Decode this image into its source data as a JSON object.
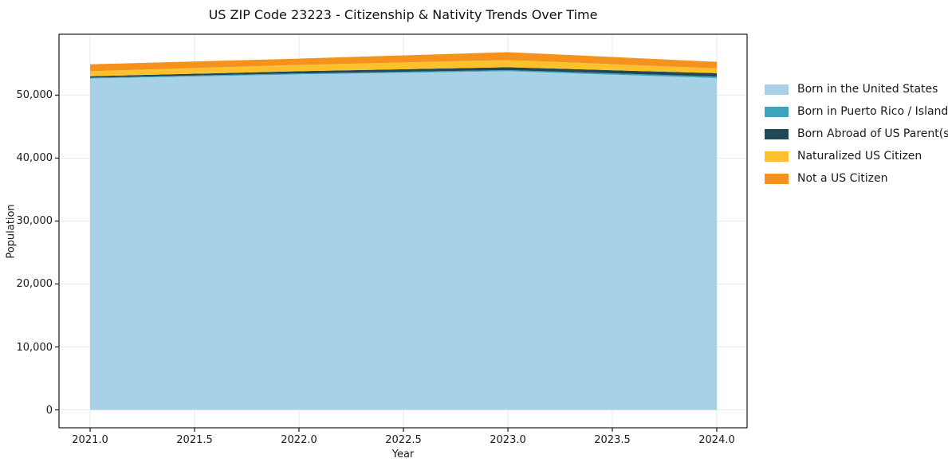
{
  "figure": {
    "title": "US ZIP Code 23223 - Citizenship & Nativity Trends Over Time",
    "background_color": "#ffffff",
    "frame_color": "#1a1a1a",
    "grid_color": "#e8e8e8",
    "text_color": "#1a1a1a"
  },
  "chart_data": {
    "type": "area",
    "stacked": true,
    "title": "US ZIP Code 23223 - Citizenship & Nativity Trends Over Time",
    "xlabel": "Year",
    "ylabel": "Population",
    "x": [
      2021,
      2022,
      2023,
      2024
    ],
    "series": [
      {
        "name": "Born in the United States",
        "color": "#A6D1E6",
        "values": [
          52650,
          53300,
          53800,
          52700
        ]
      },
      {
        "name": "Born in Puerto Rico / Islands",
        "color": "#3FA3BC",
        "values": [
          120,
          150,
          180,
          250
        ]
      },
      {
        "name": "Born Abroad of US Parent(s)",
        "color": "#214857",
        "values": [
          230,
          350,
          450,
          540
        ]
      },
      {
        "name": "Naturalized US Citizen",
        "color": "#FCC12D",
        "values": [
          800,
          1000,
          1150,
          760
        ]
      },
      {
        "name": "Not a US Citizen",
        "color": "#F5921E",
        "values": [
          1100,
          1000,
          1250,
          1040
        ]
      }
    ],
    "stack_totals": [
      54900,
      55800,
      56830,
      55290
    ],
    "xlim": [
      2020.851,
      2024.145
    ],
    "ylim": [
      -2841,
      59671
    ],
    "xticks": {
      "values": [
        2021.0,
        2021.5,
        2022.0,
        2022.5,
        2023.0,
        2023.5,
        2024.0
      ],
      "labels": [
        "2021.0",
        "2021.5",
        "2022.0",
        "2022.5",
        "2023.0",
        "2023.5",
        "2024.0"
      ]
    },
    "yticks": {
      "values": [
        0,
        10000,
        20000,
        30000,
        40000,
        50000
      ],
      "labels": [
        "0",
        "10,000",
        "20,000",
        "30,000",
        "40,000",
        "50,000"
      ]
    },
    "grid": true,
    "legend_position": "right"
  }
}
